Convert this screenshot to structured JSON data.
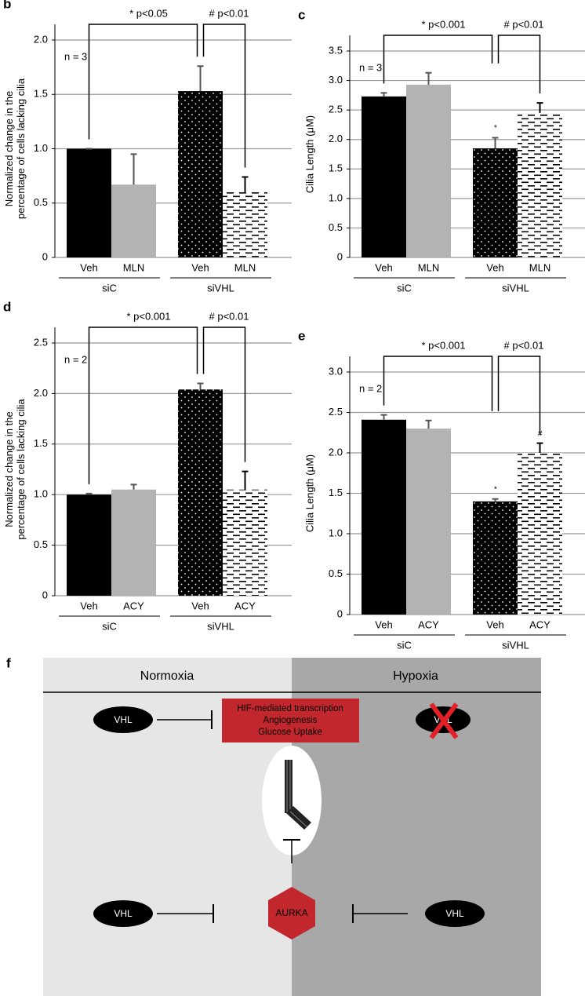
{
  "chart_data": [
    {
      "type": "bar",
      "panel": "b",
      "ylabel": [
        "Normalized change in the",
        "percentage of cells lacking cilia"
      ],
      "note": "n = 3",
      "categories": [
        "Veh",
        "MLN",
        "Veh",
        "MLN"
      ],
      "groups": [
        "siC",
        "siVHL"
      ],
      "values": [
        1.0,
        0.67,
        1.53,
        0.6
      ],
      "errors": [
        0.0,
        0.28,
        0.23,
        0.14
      ],
      "colors": [
        "#000000",
        "#b3b3b3",
        "#000000",
        "#ffffff"
      ],
      "patterns": [
        "solid",
        "solid",
        "dots",
        "dashes"
      ],
      "bar_markers": [
        null,
        null,
        null,
        null
      ],
      "significance": [
        "* p<0.05",
        "# p<0.01"
      ],
      "ylim": [
        0,
        2
      ],
      "yticks": [
        0,
        0.5,
        {
          "value": 1,
          "label": "1.0"
        },
        1.5,
        {
          "value": 2,
          "label": "2.0"
        }
      ],
      "grid": true
    },
    {
      "type": "bar",
      "panel": "c",
      "ylabel": [
        "Cilia Length (μM)"
      ],
      "note": "n = 3",
      "categories": [
        "Veh",
        "MLN",
        "Veh",
        "MLN"
      ],
      "groups": [
        "siC",
        "siVHL"
      ],
      "values": [
        2.73,
        2.93,
        1.85,
        2.45
      ],
      "errors": [
        0.06,
        0.2,
        0.18,
        0.17
      ],
      "colors": [
        "#000000",
        "#b3b3b3",
        "#000000",
        "#ffffff"
      ],
      "patterns": [
        "solid",
        "solid",
        "dots",
        "dashes"
      ],
      "bar_markers": [
        null,
        null,
        "*",
        null
      ],
      "significance": [
        "* p<0.001",
        "# p<0.01"
      ],
      "ylim": [
        0,
        3.5
      ],
      "yticks": [
        0,
        0.5,
        {
          "value": 1,
          "label": "1.0"
        },
        1.5,
        {
          "value": 2,
          "label": "2.0"
        },
        2.5,
        {
          "value": 3,
          "label": "3.0"
        },
        3.5
      ],
      "grid": true
    },
    {
      "type": "bar",
      "panel": "d",
      "ylabel": [
        "Normalized change in the",
        "percentage of cells lacking cilia"
      ],
      "note": "n = 2",
      "categories": [
        "Veh",
        "ACY",
        "Veh",
        "ACY"
      ],
      "groups": [
        "siC",
        "siVHL"
      ],
      "values": [
        1.0,
        1.05,
        2.04,
        1.05
      ],
      "errors": [
        0.01,
        0.05,
        0.06,
        0.18
      ],
      "colors": [
        "#000000",
        "#b3b3b3",
        "#000000",
        "#ffffff"
      ],
      "patterns": [
        "solid",
        "solid",
        "dots",
        "dashes"
      ],
      "bar_markers": [
        null,
        null,
        null,
        null
      ],
      "significance": [
        "* p<0.001",
        "# p<0.01"
      ],
      "ylim": [
        0,
        2.5
      ],
      "yticks": [
        0,
        0.5,
        {
          "value": 1,
          "label": "1.0"
        },
        1.5,
        {
          "value": 2,
          "label": "2.0"
        },
        2.5
      ],
      "grid": true
    },
    {
      "type": "bar",
      "panel": "e",
      "ylabel": [
        "Cilia Length (μM)"
      ],
      "note": "n = 2",
      "categories": [
        "Veh",
        "ACY",
        "Veh",
        "ACY"
      ],
      "groups": [
        "siC",
        "siVHL"
      ],
      "values": [
        2.41,
        2.3,
        1.4,
        2.0
      ],
      "errors": [
        0.06,
        0.1,
        0.03,
        0.12
      ],
      "colors": [
        "#000000",
        "#b3b3b3",
        "#000000",
        "#ffffff"
      ],
      "patterns": [
        "solid",
        "solid",
        "dots",
        "dashes"
      ],
      "bar_markers": [
        null,
        null,
        "*",
        "#"
      ],
      "significance": [
        "* p<0.001",
        "# p<0.01"
      ],
      "ylim": [
        0,
        3
      ],
      "yticks": [
        0,
        0.5,
        {
          "value": 1,
          "label": "1.0"
        },
        1.5,
        {
          "value": 2,
          "label": "2.0"
        },
        2.5,
        {
          "value": 3,
          "label": "3.0"
        }
      ],
      "grid": true
    }
  ],
  "diagram": {
    "panel": "f",
    "left_title": "Normoxia",
    "right_title": "Hypoxia",
    "nodes": {
      "vhl_top_left": "VHL",
      "vhl_top_right": "VHL",
      "vhl_bottom_left": "VHL",
      "vhl_bottom_right": "VHL",
      "aurka": "AURKA"
    },
    "effects": [
      "HIF-mediated transcription",
      "Angiogenesis",
      "Glucose Uptake"
    ]
  }
}
